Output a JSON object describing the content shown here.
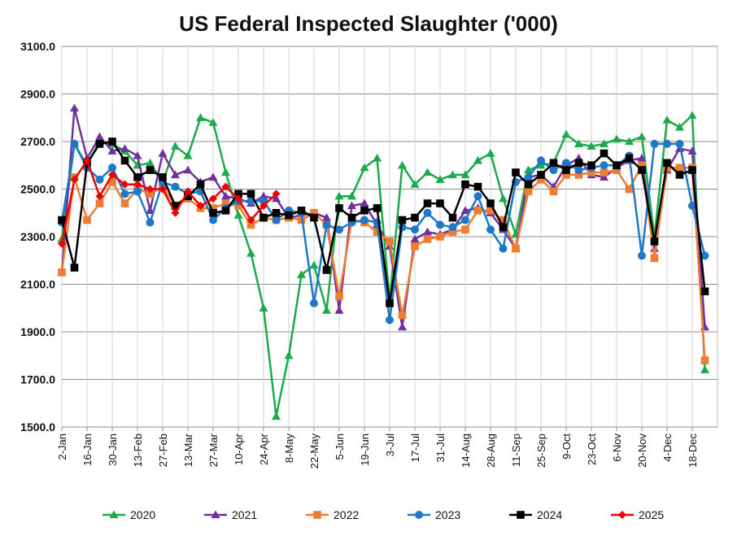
{
  "chart_data": {
    "type": "line",
    "title": "US Federal Inspected Slaughter ('000)",
    "xlabel": "",
    "ylabel": "",
    "ylim": [
      1500,
      3100
    ],
    "yticks": [
      "1500.0",
      "1700.0",
      "1900.0",
      "2100.0",
      "2300.0",
      "2500.0",
      "2700.0",
      "2900.0",
      "3100.0"
    ],
    "x_tick_labels": [
      {
        "week": 1,
        "label": "2-Jan"
      },
      {
        "week": 3,
        "label": "16-Jan"
      },
      {
        "week": 5,
        "label": "30-Jan"
      },
      {
        "week": 7,
        "label": "13-Feb"
      },
      {
        "week": 9,
        "label": "27-Feb"
      },
      {
        "week": 11,
        "label": "13-Mar"
      },
      {
        "week": 13,
        "label": "27-Mar"
      },
      {
        "week": 15,
        "label": "10-Apr"
      },
      {
        "week": 17,
        "label": "24-Apr"
      },
      {
        "week": 19,
        "label": "8-May"
      },
      {
        "week": 21,
        "label": "22-May"
      },
      {
        "week": 23,
        "label": "5-Jun"
      },
      {
        "week": 25,
        "label": "19-Jun"
      },
      {
        "week": 27,
        "label": "3-Jul"
      },
      {
        "week": 29,
        "label": "17-Jul"
      },
      {
        "week": 31,
        "label": "31-Jul"
      },
      {
        "week": 33,
        "label": "14-Aug"
      },
      {
        "week": 35,
        "label": "28-Aug"
      },
      {
        "week": 37,
        "label": "11-Sep"
      },
      {
        "week": 39,
        "label": "25-Sep"
      },
      {
        "week": 41,
        "label": "9-Oct"
      },
      {
        "week": 43,
        "label": "23-Oct"
      },
      {
        "week": 45,
        "label": "6-Nov"
      },
      {
        "week": 47,
        "label": "20-Nov"
      },
      {
        "week": 49,
        "label": "4-Dec"
      },
      {
        "week": 51,
        "label": "18-Dec"
      }
    ],
    "x_range": [
      1,
      53
    ],
    "series": [
      {
        "name": "2020",
        "color": "#1aab4b",
        "marker": "triangle",
        "values": [
          2290,
          2690,
          2600,
          2700,
          2690,
          2660,
          2600,
          2610,
          2530,
          2680,
          2640,
          2800,
          2780,
          2570,
          2390,
          2230,
          2000,
          1545,
          1800,
          2140,
          2180,
          1990,
          2470,
          2470,
          2590,
          2630,
          2030,
          2600,
          2520,
          2570,
          2540,
          2560,
          2560,
          2620,
          2650,
          2460,
          2310,
          2580,
          2600,
          2610,
          2730,
          2690,
          2680,
          2690,
          2710,
          2700,
          2720,
          2300,
          2790,
          2760,
          2810,
          1740
        ]
      },
      {
        "name": "2021",
        "color": "#7030a0",
        "marker": "triangle",
        "values": [
          2150,
          2840,
          2630,
          2720,
          2660,
          2670,
          2640,
          2410,
          2650,
          2560,
          2580,
          2530,
          2550,
          2470,
          2460,
          2440,
          2470,
          2460,
          2380,
          2390,
          2400,
          2380,
          1990,
          2430,
          2440,
          2350,
          2260,
          1920,
          2290,
          2320,
          2310,
          2330,
          2410,
          2420,
          2400,
          2330,
          2250,
          2550,
          2560,
          2510,
          2600,
          2630,
          2560,
          2550,
          2590,
          2620,
          2630,
          2250,
          2580,
          2670,
          2660,
          1920
        ]
      },
      {
        "name": "2022",
        "color": "#ed7d31",
        "marker": "square",
        "values": [
          2150,
          2550,
          2370,
          2440,
          2530,
          2440,
          2500,
          2480,
          2510,
          2430,
          2460,
          2420,
          2420,
          2440,
          2430,
          2350,
          2380,
          2370,
          2380,
          2370,
          2400,
          2350,
          2050,
          2370,
          2360,
          2320,
          2280,
          1970,
          2260,
          2290,
          2300,
          2320,
          2330,
          2410,
          2410,
          2370,
          2250,
          2490,
          2540,
          2490,
          2560,
          2560,
          2570,
          2570,
          2580,
          2500,
          2600,
          2210,
          2590,
          2590,
          2590,
          1780
        ]
      },
      {
        "name": "2023",
        "color": "#1f77c9",
        "marker": "circle",
        "values": [
          2360,
          2690,
          2590,
          2540,
          2590,
          2480,
          2490,
          2360,
          2530,
          2510,
          2480,
          2490,
          2370,
          2420,
          2450,
          2450,
          2450,
          2370,
          2410,
          2400,
          2020,
          2350,
          2330,
          2360,
          2370,
          2360,
          1950,
          2340,
          2330,
          2400,
          2350,
          2340,
          2370,
          2470,
          2330,
          2250,
          2530,
          2550,
          2620,
          2580,
          2610,
          2580,
          2590,
          2600,
          2600,
          2640,
          2220,
          2690,
          2690,
          2690,
          2430,
          2220
        ]
      },
      {
        "name": "2024",
        "color": "#000000",
        "marker": "square",
        "values": [
          2370,
          2170,
          2610,
          2690,
          2700,
          2620,
          2550,
          2580,
          2550,
          2430,
          2470,
          2520,
          2400,
          2410,
          2480,
          2480,
          2380,
          2400,
          2390,
          2410,
          2380,
          2160,
          2420,
          2380,
          2410,
          2420,
          2020,
          2370,
          2380,
          2440,
          2440,
          2380,
          2520,
          2510,
          2440,
          2340,
          2570,
          2520,
          2560,
          2610,
          2580,
          2610,
          2600,
          2650,
          2600,
          2630,
          2580,
          2280,
          2610,
          2560,
          2580,
          2070
        ]
      },
      {
        "name": "2025",
        "color": "#ee0000",
        "marker": "diamond",
        "values": [
          2270,
          2540,
          2620,
          2470,
          2560,
          2520,
          2520,
          2500,
          2500,
          2400,
          2490,
          2430,
          2460,
          2510,
          2460,
          2370,
          2430,
          2480
        ]
      }
    ],
    "legend_position": "bottom"
  }
}
